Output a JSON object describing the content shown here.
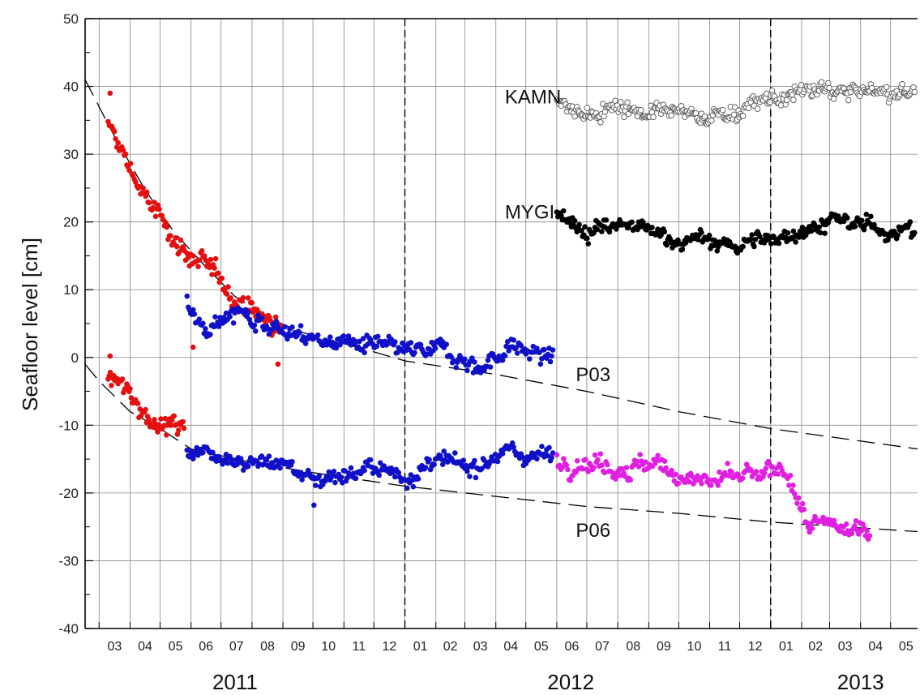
{
  "chart_data": {
    "type": "scatter",
    "ylabel": "Seafloor level [cm]",
    "ylim": [
      -40,
      50
    ],
    "yticks": [
      -40,
      -30,
      -20,
      -10,
      0,
      10,
      20,
      30,
      40,
      50
    ],
    "xlim_months": [
      "2011-02-15",
      "2013-05-28"
    ],
    "grid": true,
    "month_labels": [
      "03",
      "04",
      "05",
      "06",
      "07",
      "08",
      "09",
      "10",
      "11",
      "12",
      "01",
      "02",
      "03",
      "04",
      "05",
      "06",
      "07",
      "08",
      "09",
      "10",
      "11",
      "12",
      "01",
      "02",
      "03",
      "04",
      "05"
    ],
    "year_labels": [
      {
        "text": "2011",
        "center": "2011-07-15"
      },
      {
        "text": "2012",
        "center": "2012-06-15"
      },
      {
        "text": "2013",
        "center": "2013-04-01"
      }
    ],
    "year_boundaries": [
      "2012-01-01",
      "2013-01-01"
    ],
    "series_labels": [
      {
        "text": "KAMN",
        "date": "2012-04-10",
        "value": 37.5
      },
      {
        "text": "MYGI",
        "date": "2012-04-10",
        "value": 20.5
      },
      {
        "text": "P03",
        "date": "2012-06-20",
        "value": -3.5
      },
      {
        "text": "P06",
        "date": "2012-06-20",
        "value": -26.5
      }
    ],
    "colors": {
      "p03_early": "#e41010",
      "p03_late": "#1010c8",
      "p06_early": "#e41010",
      "p06_mid": "#1010c8",
      "p06_late": "#e020e0",
      "mygi": "#000000",
      "kamn_stroke": "#555555",
      "trend": "#000000"
    },
    "series": [
      {
        "id": "p03_red",
        "color_key": "p03_early",
        "fill": true,
        "start": "2011-03-10",
        "end": "2011-08-31",
        "curve": [
          [
            "2011-03-10",
            34
          ],
          [
            "2011-04-01",
            28
          ],
          [
            "2011-04-20",
            22.5
          ],
          [
            "2011-05-10",
            18.5
          ],
          [
            "2011-06-01",
            15
          ],
          [
            "2011-07-01",
            11
          ],
          [
            "2011-08-01",
            7
          ],
          [
            "2011-08-31",
            4
          ]
        ],
        "noise": 1.3,
        "n": 140,
        "extra_points": [
          [
            "2011-03-12",
            39
          ],
          [
            "2011-06-03",
            1.5
          ],
          [
            "2011-08-27",
            -1
          ]
        ]
      },
      {
        "id": "p03_blue",
        "color_key": "p03_late",
        "fill": true,
        "start": "2011-05-28",
        "end": "2012-05-28",
        "curve": [
          [
            "2011-05-28",
            8
          ],
          [
            "2011-06-10",
            5
          ],
          [
            "2011-07-01",
            6.5
          ],
          [
            "2011-07-25",
            6.5
          ],
          [
            "2011-08-20",
            5
          ],
          [
            "2011-09-15",
            3
          ],
          [
            "2011-10-15",
            2.5
          ],
          [
            "2011-11-15",
            2
          ],
          [
            "2011-12-15",
            1
          ],
          [
            "2012-01-15",
            0.5
          ],
          [
            "2012-02-15",
            1
          ],
          [
            "2012-03-15",
            -1.5
          ],
          [
            "2012-04-15",
            1.5
          ],
          [
            "2012-05-28",
            0
          ]
        ],
        "noise": 1.1,
        "n": 300,
        "extra_points": []
      },
      {
        "id": "p06_red",
        "color_key": "p06_early",
        "fill": true,
        "start": "2011-03-10",
        "end": "2011-05-25",
        "curve": [
          [
            "2011-03-10",
            -2.5
          ],
          [
            "2011-04-01",
            -5.5
          ],
          [
            "2011-04-20",
            -8.5
          ],
          [
            "2011-05-10",
            -10
          ],
          [
            "2011-05-25",
            -10.5
          ]
        ],
        "noise": 1.2,
        "n": 70,
        "extra_points": [
          [
            "2011-03-12",
            0.2
          ]
        ]
      },
      {
        "id": "p06_blue",
        "color_key": "p06_mid",
        "fill": true,
        "start": "2011-05-28",
        "end": "2012-05-28",
        "curve": [
          [
            "2011-05-28",
            -13.5
          ],
          [
            "2011-07-01",
            -14
          ],
          [
            "2011-08-01",
            -15.5
          ],
          [
            "2011-09-01",
            -15.5
          ],
          [
            "2011-10-01",
            -18
          ],
          [
            "2011-11-01",
            -17
          ],
          [
            "2011-12-01",
            -16.5
          ],
          [
            "2012-01-01",
            -17.5
          ],
          [
            "2012-02-01",
            -15.5
          ],
          [
            "2012-03-01",
            -16.5
          ],
          [
            "2012-04-01",
            -14
          ],
          [
            "2012-05-28",
            -14.5
          ]
        ],
        "noise": 1.0,
        "n": 300,
        "extra_points": [
          [
            "2011-10-02",
            -21.8
          ]
        ]
      },
      {
        "id": "p06_magenta",
        "color_key": "p06_late",
        "fill": true,
        "start": "2012-06-01",
        "end": "2013-04-10",
        "curve": [
          [
            "2012-06-01",
            -15
          ],
          [
            "2012-07-01",
            -15
          ],
          [
            "2012-08-01",
            -16
          ],
          [
            "2012-09-01",
            -16
          ],
          [
            "2012-10-01",
            -17
          ],
          [
            "2012-11-01",
            -18.5
          ],
          [
            "2012-12-01",
            -18
          ],
          [
            "2013-01-01",
            -17.5
          ],
          [
            "2013-01-20",
            -17
          ],
          [
            "2013-02-05",
            -24.5
          ],
          [
            "2013-03-01",
            -25.5
          ],
          [
            "2013-04-10",
            -25.5
          ]
        ],
        "noise": 1.2,
        "n": 230,
        "extra_points": []
      },
      {
        "id": "mygi",
        "color_key": "mygi",
        "fill": true,
        "start": "2012-06-01",
        "end": "2013-05-25",
        "curve": [
          [
            "2012-06-01",
            22
          ],
          [
            "2012-07-01",
            18.5
          ],
          [
            "2012-08-01",
            19.5
          ],
          [
            "2012-09-01",
            18.5
          ],
          [
            "2012-10-01",
            17.5
          ],
          [
            "2012-11-01",
            17
          ],
          [
            "2012-12-01",
            16.5
          ],
          [
            "2013-01-01",
            17.5
          ],
          [
            "2013-02-01",
            19
          ],
          [
            "2013-03-01",
            20
          ],
          [
            "2013-04-01",
            19.5
          ],
          [
            "2013-05-25",
            18.5
          ]
        ],
        "noise": 1.0,
        "n": 320,
        "extra_points": []
      },
      {
        "id": "kamn",
        "color_key": "kamn_stroke",
        "fill": false,
        "start": "2012-06-01",
        "end": "2013-05-25",
        "curve": [
          [
            "2012-06-01",
            37.5
          ],
          [
            "2012-07-01",
            35.5
          ],
          [
            "2012-08-01",
            37.5
          ],
          [
            "2012-09-01",
            36
          ],
          [
            "2012-10-01",
            36
          ],
          [
            "2012-11-01",
            35.5
          ],
          [
            "2012-12-01",
            36.5
          ],
          [
            "2013-01-01",
            38
          ],
          [
            "2013-02-01",
            39
          ],
          [
            "2013-03-01",
            39.5
          ],
          [
            "2013-04-01",
            39
          ],
          [
            "2013-05-25",
            39
          ]
        ],
        "noise": 1.0,
        "n": 320,
        "extra_points": []
      }
    ],
    "trend_lines": [
      {
        "id": "trend_p03",
        "points": [
          [
            "2011-02-15",
            41
          ],
          [
            "2011-03-15",
            33
          ],
          [
            "2011-04-15",
            25
          ],
          [
            "2011-05-15",
            18.5
          ],
          [
            "2011-06-15",
            13.5
          ],
          [
            "2011-07-15",
            9
          ],
          [
            "2011-08-15",
            6
          ],
          [
            "2011-09-15",
            4
          ],
          [
            "2011-10-15",
            2.5
          ],
          [
            "2011-11-15",
            1.5
          ],
          [
            "2012-01-01",
            -0.5
          ],
          [
            "2012-04-01",
            -2.5
          ],
          [
            "2012-07-01",
            -5
          ],
          [
            "2012-10-01",
            -8
          ],
          [
            "2013-01-01",
            -10.5
          ],
          [
            "2013-05-28",
            -13.5
          ]
        ]
      },
      {
        "id": "trend_p06",
        "points": [
          [
            "2011-02-15",
            -1
          ],
          [
            "2011-03-01",
            -3.5
          ],
          [
            "2011-04-01",
            -8
          ],
          [
            "2011-05-01",
            -10.5
          ],
          [
            "2011-06-01",
            -13.5
          ],
          [
            "2011-07-01",
            -14.5
          ],
          [
            "2011-08-01",
            -15.5
          ],
          [
            "2011-10-01",
            -17
          ],
          [
            "2012-01-01",
            -19
          ],
          [
            "2012-04-01",
            -20.5
          ],
          [
            "2012-07-01",
            -22
          ],
          [
            "2012-10-01",
            -23
          ],
          [
            "2013-01-01",
            -24.3
          ],
          [
            "2013-05-28",
            -25.7
          ]
        ]
      }
    ]
  }
}
